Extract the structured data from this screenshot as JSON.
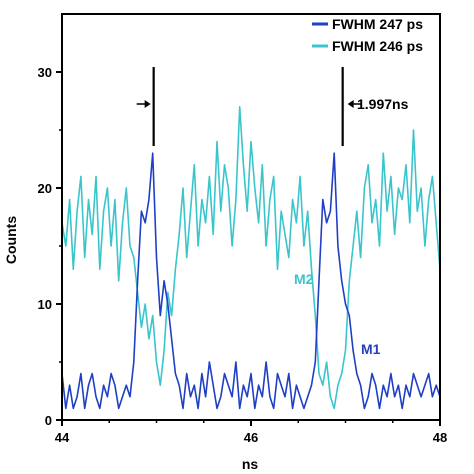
{
  "chart_data": {
    "type": "line",
    "xlabel": "ns",
    "ylabel": "Counts",
    "xlim": [
      44,
      48
    ],
    "ylim": [
      0,
      35
    ],
    "xticks": [
      44,
      46,
      48
    ],
    "yticks": [
      0,
      10,
      20,
      30
    ],
    "grid": false,
    "legend_position": "top-right",
    "series": [
      {
        "name": "FWHM 247 ps",
        "color": "#1f3fc4",
        "x": [
          44.0,
          44.04,
          44.08,
          44.12,
          44.16,
          44.2,
          44.24,
          44.28,
          44.32,
          44.36,
          44.4,
          44.44,
          44.48,
          44.52,
          44.56,
          44.6,
          44.64,
          44.68,
          44.72,
          44.76,
          44.8,
          44.84,
          44.88,
          44.92,
          44.96,
          45.0,
          45.04,
          45.08,
          45.12,
          45.16,
          45.2,
          45.24,
          45.28,
          45.32,
          45.36,
          45.4,
          45.44,
          45.48,
          45.52,
          45.56,
          45.6,
          45.64,
          45.68,
          45.72,
          45.76,
          45.8,
          45.84,
          45.88,
          45.92,
          45.96,
          46.0,
          46.04,
          46.08,
          46.12,
          46.16,
          46.2,
          46.24,
          46.28,
          46.32,
          46.36,
          46.4,
          46.44,
          46.48,
          46.52,
          46.56,
          46.6,
          46.64,
          46.68,
          46.72,
          46.76,
          46.8,
          46.84,
          46.88,
          46.92,
          46.96,
          47.0,
          47.04,
          47.08,
          47.12,
          47.16,
          47.2,
          47.24,
          47.28,
          47.32,
          47.36,
          47.4,
          47.44,
          47.48,
          47.52,
          47.56,
          47.6,
          47.64,
          47.68,
          47.72,
          47.76,
          47.8,
          47.84,
          47.88,
          47.92,
          47.96,
          48.0
        ],
        "y": [
          4,
          1,
          3,
          1,
          2,
          4,
          1,
          3,
          4,
          2,
          1,
          3,
          2,
          4,
          3,
          1,
          2,
          3,
          2,
          5,
          12,
          18,
          17,
          19,
          23,
          14,
          9,
          12,
          10,
          7,
          4,
          3,
          1,
          4,
          2,
          3,
          1,
          4,
          2,
          5,
          3,
          1,
          2,
          4,
          3,
          2,
          5,
          1,
          3,
          2,
          4,
          1,
          3,
          2,
          5,
          2,
          1,
          4,
          3,
          2,
          4,
          1,
          3,
          2,
          1,
          2,
          3,
          5,
          12,
          19,
          17,
          18,
          23,
          15,
          12,
          10,
          9,
          6,
          4,
          3,
          1,
          2,
          4,
          3,
          1,
          3,
          2,
          4,
          2,
          3,
          1,
          3,
          2,
          4,
          3,
          2,
          3,
          4,
          2,
          3,
          2
        ]
      },
      {
        "name": "FWHM 246 ps",
        "color": "#3ac5cc",
        "x": [
          44.0,
          44.04,
          44.08,
          44.12,
          44.16,
          44.2,
          44.24,
          44.28,
          44.32,
          44.36,
          44.4,
          44.44,
          44.48,
          44.52,
          44.56,
          44.6,
          44.64,
          44.68,
          44.72,
          44.76,
          44.8,
          44.84,
          44.88,
          44.92,
          44.96,
          45.0,
          45.04,
          45.08,
          45.12,
          45.16,
          45.2,
          45.24,
          45.28,
          45.32,
          45.36,
          45.4,
          45.44,
          45.48,
          45.52,
          45.56,
          45.6,
          45.64,
          45.68,
          45.72,
          45.76,
          45.8,
          45.84,
          45.88,
          45.92,
          45.96,
          46.0,
          46.04,
          46.08,
          46.12,
          46.16,
          46.2,
          46.24,
          46.28,
          46.32,
          46.36,
          46.4,
          46.44,
          46.48,
          46.52,
          46.56,
          46.6,
          46.64,
          46.68,
          46.72,
          46.76,
          46.8,
          46.84,
          46.88,
          46.92,
          46.96,
          47.0,
          47.04,
          47.08,
          47.12,
          47.16,
          47.2,
          47.24,
          47.28,
          47.32,
          47.36,
          47.4,
          47.44,
          47.48,
          47.52,
          47.56,
          47.6,
          47.64,
          47.68,
          47.72,
          47.76,
          47.8,
          47.84,
          47.88,
          47.92,
          47.96,
          48.0
        ],
        "y": [
          17,
          15,
          19,
          13,
          18,
          21,
          14,
          19,
          16,
          21,
          13,
          18,
          20,
          15,
          19,
          12,
          17,
          20,
          15,
          14,
          11,
          8,
          10,
          7,
          9,
          5,
          3,
          6,
          11,
          9,
          13,
          16,
          20,
          14,
          18,
          22,
          15,
          19,
          17,
          21,
          16,
          24,
          18,
          22,
          20,
          15,
          19,
          27,
          22,
          18,
          24,
          20,
          17,
          22,
          15,
          19,
          21,
          13,
          18,
          16,
          14,
          19,
          17,
          21,
          15,
          18,
          13,
          9,
          4,
          3,
          5,
          2,
          1,
          3,
          4,
          6,
          12,
          15,
          18,
          14,
          20,
          22,
          17,
          19,
          15,
          23,
          18,
          21,
          16,
          20,
          19,
          22,
          17,
          25,
          18,
          20,
          15,
          19,
          21,
          17,
          13
        ]
      }
    ],
    "annotations": [
      {
        "label": "M1",
        "x": 47.35,
        "y": 6
      },
      {
        "label": "M2",
        "x": 46.52,
        "y": 12
      }
    ],
    "markers": {
      "left_peak_x": 44.97,
      "right_peak_x": 46.97,
      "separation_label": "1.997ns"
    }
  }
}
